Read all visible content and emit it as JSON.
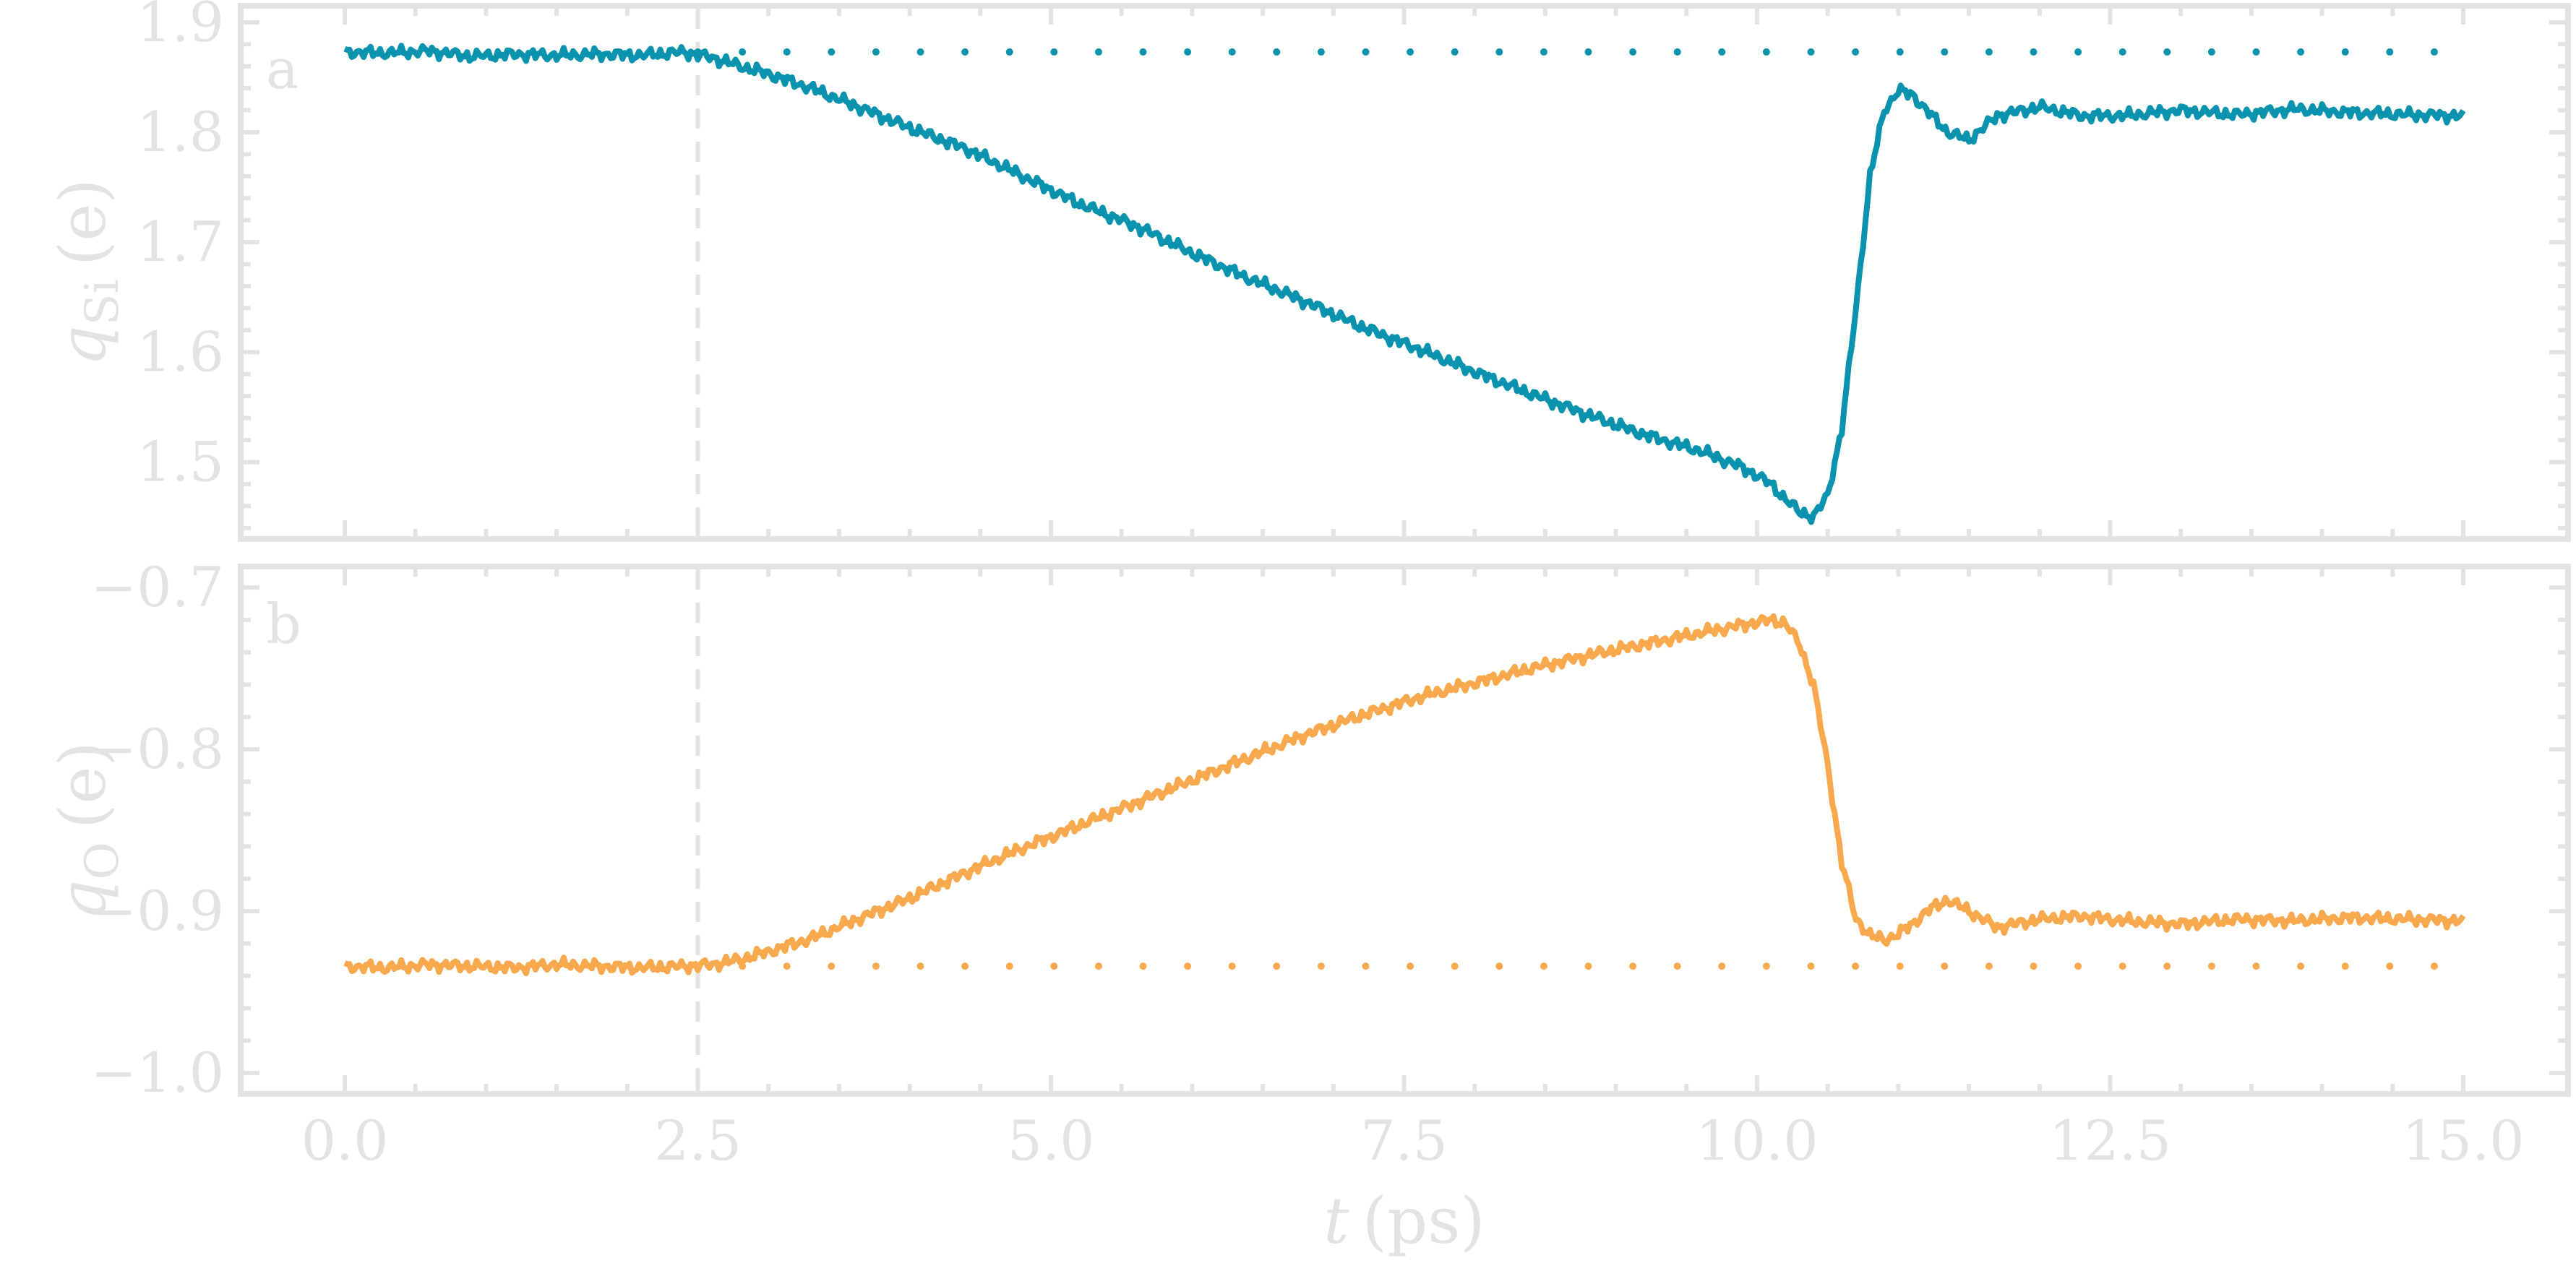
{
  "chart_data": [
    {
      "type": "line",
      "panel_label": "a",
      "ylabel_symbol": "q",
      "ylabel_subscript": "Si",
      "ylabel_unit": "(e)",
      "xlim": [
        0,
        15
      ],
      "ylim": [
        1.43,
        1.915
      ],
      "y_ticks": [
        "1.5",
        "1.6",
        "1.7",
        "1.8",
        "1.9"
      ],
      "y_tick_values": [
        1.5,
        1.6,
        1.7,
        1.8,
        1.9
      ],
      "marker_line_x": 2.5,
      "reference_y": 1.873,
      "color": "#0a93ae",
      "series": [
        {
          "x": [
            0.0,
            0.3,
            0.6,
            0.9,
            1.2,
            1.5,
            1.8,
            2.1,
            2.4,
            2.6,
            2.8,
            3.0,
            3.3,
            3.6,
            4.0,
            4.4,
            4.8,
            5.2,
            5.6,
            6.0,
            6.4,
            6.8,
            7.2,
            7.6,
            8.0,
            8.4,
            8.8,
            9.2,
            9.6,
            9.9,
            10.1,
            10.2,
            10.3,
            10.4,
            10.5,
            10.6,
            10.7,
            10.8,
            10.9,
            11.0,
            11.1,
            11.2,
            11.35,
            11.5,
            11.7,
            12.0,
            12.3,
            12.6,
            13.0,
            13.4,
            13.8,
            14.2,
            14.6,
            15.0
          ],
          "y": [
            1.873,
            1.872,
            1.874,
            1.869,
            1.871,
            1.87,
            1.871,
            1.87,
            1.873,
            1.868,
            1.86,
            1.853,
            1.84,
            1.825,
            1.804,
            1.785,
            1.76,
            1.735,
            1.715,
            1.69,
            1.667,
            1.646,
            1.623,
            1.603,
            1.582,
            1.562,
            1.543,
            1.525,
            1.51,
            1.495,
            1.48,
            1.466,
            1.455,
            1.45,
            1.47,
            1.53,
            1.64,
            1.76,
            1.82,
            1.838,
            1.834,
            1.82,
            1.8,
            1.793,
            1.815,
            1.823,
            1.815,
            1.815,
            1.82,
            1.816,
            1.821,
            1.818,
            1.816,
            1.815
          ]
        }
      ]
    },
    {
      "type": "line",
      "panel_label": "b",
      "ylabel_symbol": "q",
      "ylabel_subscript": "O",
      "ylabel_unit": "(e)",
      "xlim": [
        0,
        15
      ],
      "ylim": [
        -1.013,
        -0.687
      ],
      "y_ticks": [
        "−1.0",
        "−0.9",
        "−0.8",
        "−0.7"
      ],
      "y_tick_values": [
        -1.0,
        -0.9,
        -0.8,
        -0.7
      ],
      "marker_line_x": 2.5,
      "reference_y": -0.934,
      "color": "#f8a94d",
      "series": [
        {
          "x": [
            0.0,
            0.3,
            0.6,
            0.9,
            1.2,
            1.5,
            1.8,
            2.1,
            2.4,
            2.6,
            2.8,
            3.0,
            3.3,
            3.6,
            4.0,
            4.4,
            4.8,
            5.2,
            5.6,
            6.0,
            6.4,
            6.8,
            7.2,
            7.6,
            8.0,
            8.4,
            8.8,
            9.2,
            9.6,
            9.9,
            10.1,
            10.2,
            10.3,
            10.4,
            10.5,
            10.6,
            10.7,
            10.8,
            10.9,
            11.0,
            11.1,
            11.2,
            11.35,
            11.5,
            11.7,
            12.0,
            12.3,
            12.6,
            13.0,
            13.4,
            13.8,
            14.2,
            14.6,
            15.0
          ],
          "y": [
            -0.934,
            -0.935,
            -0.933,
            -0.934,
            -0.935,
            -0.933,
            -0.934,
            -0.935,
            -0.934,
            -0.933,
            -0.93,
            -0.925,
            -0.917,
            -0.906,
            -0.892,
            -0.876,
            -0.861,
            -0.847,
            -0.833,
            -0.819,
            -0.805,
            -0.791,
            -0.779,
            -0.768,
            -0.759,
            -0.75,
            -0.742,
            -0.735,
            -0.728,
            -0.723,
            -0.72,
            -0.722,
            -0.735,
            -0.76,
            -0.81,
            -0.87,
            -0.905,
            -0.915,
            -0.918,
            -0.914,
            -0.908,
            -0.9,
            -0.893,
            -0.9,
            -0.91,
            -0.905,
            -0.903,
            -0.906,
            -0.908,
            -0.905,
            -0.906,
            -0.904,
            -0.905,
            -0.906
          ]
        }
      ]
    }
  ],
  "x_axis": {
    "ticks": [
      "0.0",
      "2.5",
      "5.0",
      "7.5",
      "10.0",
      "12.5",
      "15.0"
    ],
    "tick_values": [
      0,
      2.5,
      5,
      7.5,
      10,
      12.5,
      15
    ],
    "label_symbol": "t",
    "label_unit": "(ps)"
  },
  "colors": {
    "frame": "#e3e3e3",
    "text": "#e3e3e3"
  }
}
